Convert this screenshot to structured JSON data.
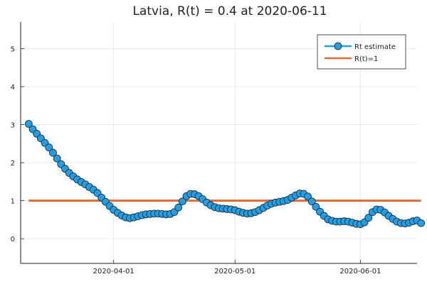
{
  "chart_data": {
    "type": "line",
    "title": "Latvia, R(t) = 0.4 at 2020-06-11",
    "xlabel": "",
    "ylabel": "",
    "x_start": "2020-03-11",
    "ylim": [
      -0.65,
      5.7
    ],
    "yticks": [
      0,
      1,
      2,
      3,
      4,
      5
    ],
    "xticks": [
      "2020-04-01",
      "2020-05-01",
      "2020-06-01"
    ],
    "xlim": [
      "2020-03-09",
      "2020-06-15"
    ],
    "grid": true,
    "legend": "top-right",
    "series": [
      {
        "name": "Rt estimate",
        "color": "#1f9fe8",
        "marker": "circle",
        "values": [
          3.02,
          2.88,
          2.76,
          2.64,
          2.52,
          2.4,
          2.26,
          2.11,
          1.96,
          1.84,
          1.73,
          1.64,
          1.56,
          1.49,
          1.43,
          1.36,
          1.29,
          1.2,
          1.08,
          0.97,
          0.86,
          0.76,
          0.68,
          0.61,
          0.56,
          0.54,
          0.56,
          0.59,
          0.62,
          0.64,
          0.65,
          0.66,
          0.66,
          0.65,
          0.64,
          0.65,
          0.7,
          0.82,
          0.98,
          1.12,
          1.18,
          1.17,
          1.12,
          1.04,
          0.95,
          0.88,
          0.83,
          0.8,
          0.79,
          0.78,
          0.77,
          0.75,
          0.71,
          0.68,
          0.66,
          0.67,
          0.7,
          0.75,
          0.81,
          0.87,
          0.92,
          0.95,
          0.97,
          0.99,
          1.02,
          1.08,
          1.14,
          1.19,
          1.18,
          1.11,
          0.98,
          0.84,
          0.71,
          0.6,
          0.51,
          0.47,
          0.45,
          0.45,
          0.46,
          0.45,
          0.42,
          0.39,
          0.38,
          0.43,
          0.55,
          0.7,
          0.77,
          0.76,
          0.69,
          0.6,
          0.52,
          0.45,
          0.41,
          0.4,
          0.42,
          0.46,
          0.48,
          0.41
        ]
      },
      {
        "name": "R(t)=1",
        "color": "#e06c35",
        "values": [
          1,
          1
        ]
      }
    ]
  }
}
